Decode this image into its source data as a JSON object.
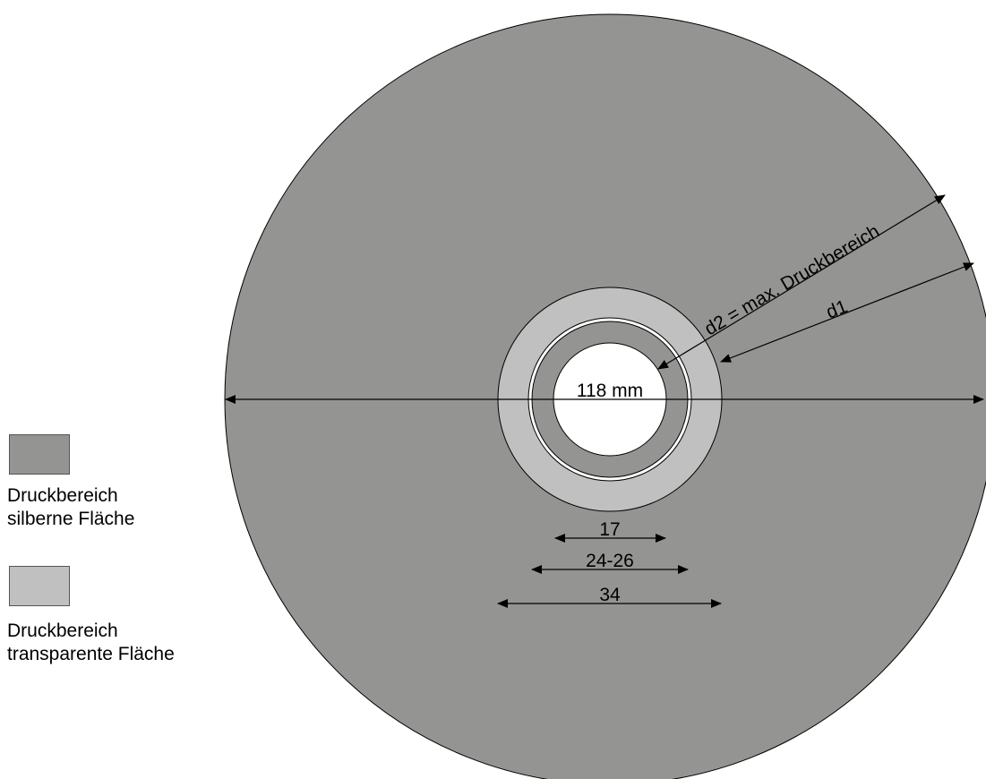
{
  "diagram": {
    "colors": {
      "silver_area": "#949492",
      "transparent_area": "#c0c0c0",
      "hole": "#ffffff",
      "stroke": "#000000"
    },
    "labels": {
      "outer_diameter": "118 mm",
      "d2": "d2 = max. Druckbereich",
      "d1": "d1",
      "dim_17": "17",
      "dim_24_26": "24-26",
      "dim_34": "34"
    }
  },
  "legend": {
    "items": [
      {
        "name": "silver",
        "color": "#949492",
        "line1": "Druckbereich",
        "line2": "silberne Fläche"
      },
      {
        "name": "transparent",
        "color": "#c0c0c0",
        "line1": "Druckbereich",
        "line2": "transparente Fläche"
      }
    ]
  }
}
